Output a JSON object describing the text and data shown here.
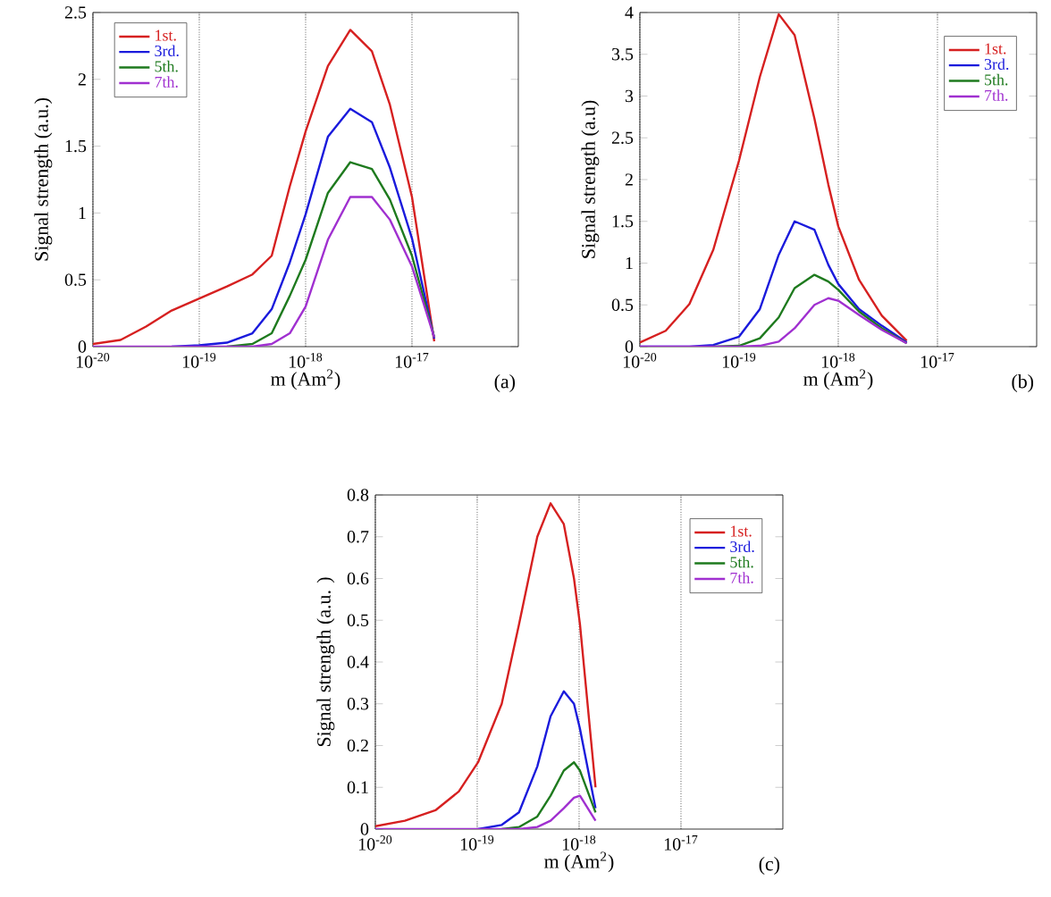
{
  "chart_data": [
    {
      "type": "line",
      "xlabel": "m (Am$^{2}$)",
      "ylabel": "Signal strength (a.u.)",
      "annotations": [
        "(a)"
      ],
      "log": "x",
      "grid": "x",
      "legend": "top left",
      "marker": "none",
      "line_style": "solid",
      "xlim": [
        1e-20,
        1e-16
      ],
      "xticks": [
        {
          "value": 1e-20,
          "label": "10$^{-20}$"
        },
        {
          "value": 1e-19,
          "label": "10$^{-19}$"
        },
        {
          "value": 1e-18,
          "label": "10$^{-18}$"
        },
        {
          "value": 1e-17,
          "label": "10$^{-17}$"
        }
      ],
      "ylim": [
        0,
        2.5
      ],
      "yticks": [
        0,
        0.5,
        1,
        1.5,
        2,
        2.5
      ],
      "x": [
        1e-20,
        1.82e-20,
        3.16e-20,
        5.5e-20,
        1e-19,
        1.82e-19,
        3.16e-19,
        4.8e-19,
        7.1e-19,
        1e-18,
        1.62e-18,
        2.63e-18,
        4.2e-18,
        6.2e-18,
        1e-17,
        1.62e-17
      ],
      "series": [
        {
          "name": "1st.",
          "color": "#d62020",
          "values": [
            0.02,
            0.05,
            0.15,
            0.27,
            0.36,
            0.45,
            0.54,
            0.68,
            1.2,
            1.61,
            2.1,
            2.37,
            2.21,
            1.81,
            1.12,
            0.04
          ]
        },
        {
          "name": "3rd.",
          "color": "#1a1adc",
          "values": [
            null,
            null,
            null,
            0,
            0.01,
            0.03,
            0.1,
            0.28,
            0.63,
            0.99,
            1.57,
            1.78,
            1.68,
            1.34,
            0.81,
            0.06
          ]
        },
        {
          "name": "5th.",
          "color": "#1e7a1e",
          "values": [
            null,
            null,
            null,
            null,
            null,
            0,
            0.02,
            0.1,
            0.38,
            0.65,
            1.15,
            1.38,
            1.33,
            1.1,
            0.68,
            0.07
          ]
        },
        {
          "name": "7th.",
          "color": "#a030d0",
          "values": [
            0,
            0,
            0,
            0,
            0,
            0,
            0,
            0.02,
            0.1,
            0.3,
            0.8,
            1.12,
            1.12,
            0.95,
            0.6,
            0.07
          ]
        }
      ]
    },
    {
      "type": "line",
      "xlabel": "m (Am$^{2}$)",
      "ylabel": "Signal strength (a.u)",
      "annotations": [
        "(b)"
      ],
      "log": "x",
      "grid": "x",
      "legend": "top right",
      "marker": "none",
      "line_style": "solid",
      "xlim": [
        1e-20,
        1e-16
      ],
      "xticks": [
        {
          "value": 1e-20,
          "label": "10$^{-20}$"
        },
        {
          "value": 1e-19,
          "label": "10$^{-19}$"
        },
        {
          "value": 1e-18,
          "label": "10$^{-18}$"
        },
        {
          "value": 1e-17,
          "label": "10$^{-17}$"
        }
      ],
      "ylim": [
        0,
        4
      ],
      "yticks": [
        0,
        0.5,
        1,
        1.5,
        2,
        2.5,
        3,
        3.5,
        4
      ],
      "x": [
        1e-20,
        1.82e-20,
        3.16e-20,
        5.5e-20,
        1e-19,
        1.62e-19,
        2.51e-19,
        3.63e-19,
        5.75e-19,
        7.94e-19,
        1e-18,
        1.62e-18,
        2.75e-18,
        4.9e-18
      ],
      "series": [
        {
          "name": "1st.",
          "color": "#d62020",
          "values": [
            0.05,
            0.19,
            0.51,
            1.16,
            2.23,
            3.23,
            3.98,
            3.73,
            2.73,
            1.94,
            1.44,
            0.8,
            0.37,
            0.07
          ]
        },
        {
          "name": "3rd.",
          "color": "#1a1adc",
          "values": [
            0,
            0,
            0,
            0.02,
            0.12,
            0.45,
            1.1,
            1.5,
            1.4,
            0.98,
            0.75,
            0.45,
            0.25,
            0.05
          ]
        },
        {
          "name": "5th.",
          "color": "#1e7a1e",
          "values": [
            null,
            null,
            null,
            0,
            0.01,
            0.1,
            0.35,
            0.7,
            0.86,
            0.78,
            0.68,
            0.42,
            0.22,
            0.04
          ]
        },
        {
          "name": "7th.",
          "color": "#a030d0",
          "values": [
            0,
            0,
            0,
            0,
            0,
            0.01,
            0.06,
            0.22,
            0.5,
            0.58,
            0.55,
            0.38,
            0.2,
            0.04
          ]
        }
      ]
    },
    {
      "type": "line",
      "xlabel": "m (Am$^{2}$)",
      "ylabel": "Signal strength (a.u. )",
      "annotations": [
        "(c)"
      ],
      "log": "x",
      "grid": "x",
      "legend": "top right",
      "marker": "none",
      "line_style": "solid",
      "xlim": [
        1e-20,
        1e-16
      ],
      "xticks": [
        {
          "value": 1e-20,
          "label": "10$^{-20}$"
        },
        {
          "value": 1e-19,
          "label": "10$^{-19}$"
        },
        {
          "value": 1e-18,
          "label": "10$^{-18}$"
        },
        {
          "value": 1e-17,
          "label": "10$^{-17}$"
        }
      ],
      "ylim": [
        0,
        0.8
      ],
      "yticks": [
        0,
        0.1,
        0.2,
        0.3,
        0.4,
        0.5,
        0.6,
        0.7,
        0.8
      ],
      "x": [
        1e-20,
        1.95e-20,
        3.89e-20,
        6.6e-20,
        1.02e-19,
        1.74e-19,
        2.57e-19,
        3.89e-19,
        5.25e-19,
        7.08e-19,
        8.91e-19,
        1.02e-18,
        1.45e-18
      ],
      "series": [
        {
          "name": "1st.",
          "color": "#d62020",
          "values": [
            0.007,
            0.02,
            0.045,
            0.09,
            0.16,
            0.3,
            0.49,
            0.7,
            0.78,
            0.73,
            0.6,
            0.49,
            0.1
          ]
        },
        {
          "name": "3rd.",
          "color": "#1a1adc",
          "values": [
            null,
            null,
            null,
            null,
            0,
            0.01,
            0.04,
            0.15,
            0.27,
            0.33,
            0.3,
            0.24,
            0.05
          ]
        },
        {
          "name": "5th.",
          "color": "#1e7a1e",
          "values": [
            null,
            null,
            null,
            null,
            null,
            0,
            0.005,
            0.03,
            0.08,
            0.14,
            0.16,
            0.14,
            0.04
          ]
        },
        {
          "name": "7th.",
          "color": "#a030d0",
          "values": [
            0,
            0,
            0,
            0,
            0,
            0,
            0,
            0.005,
            0.02,
            0.05,
            0.075,
            0.08,
            0.02
          ]
        }
      ]
    }
  ]
}
